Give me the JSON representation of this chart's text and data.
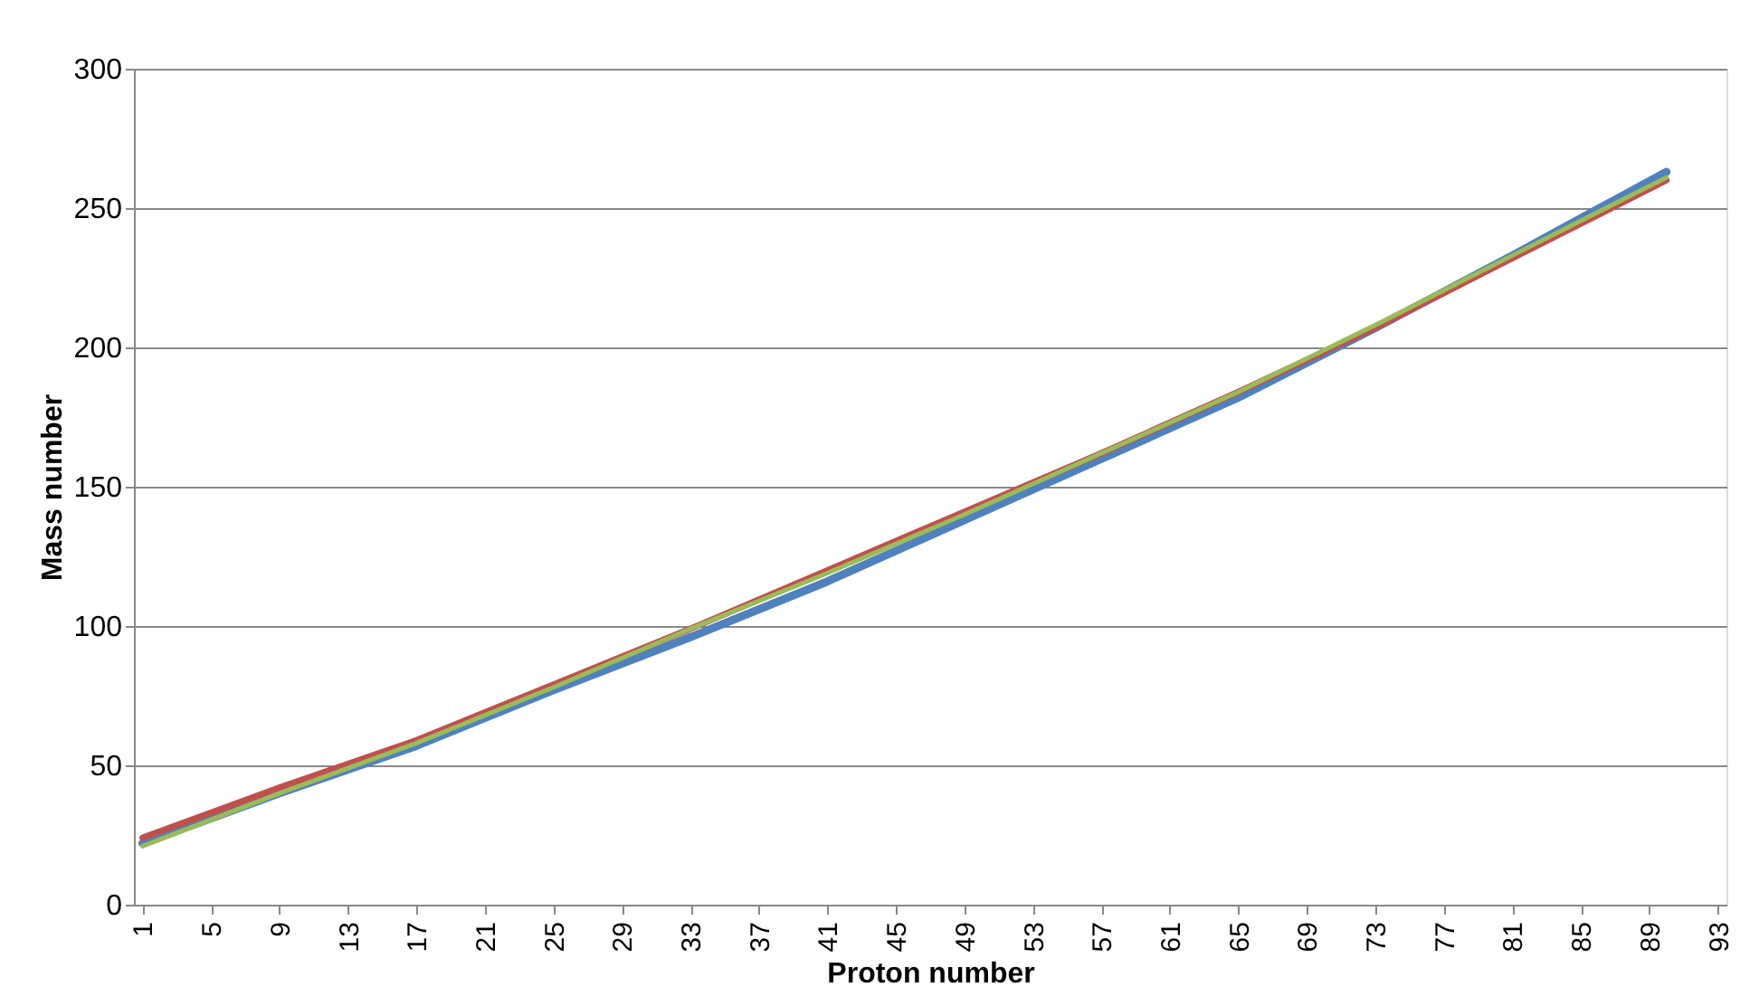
{
  "chart_data": {
    "type": "line",
    "xlabel": "Proton number",
    "ylabel": "Mass number",
    "xlim": [
      0.5,
      93.5
    ],
    "xticks": [
      1,
      5,
      9,
      13,
      17,
      21,
      25,
      29,
      33,
      37,
      41,
      45,
      49,
      53,
      57,
      61,
      65,
      69,
      73,
      77,
      81,
      85,
      89,
      93
    ],
    "ylim": [
      0,
      300
    ],
    "yticks": [
      0,
      50,
      100,
      150,
      200,
      250,
      300
    ],
    "grid": "y",
    "legend": false,
    "marker": "none",
    "line_style": "solid",
    "series": [
      {
        "color": "#4f81bd",
        "x": [
          1,
          9,
          17,
          25,
          33,
          41,
          49,
          57,
          65,
          73,
          81,
          90
        ],
        "values": [
          22,
          40,
          57,
          77,
          96,
          116,
          138,
          160,
          182,
          207,
          233,
          263
        ]
      },
      {
        "color": "#c0504d",
        "x": [
          1,
          9,
          17,
          25,
          33,
          41,
          49,
          57,
          65,
          73,
          81,
          90
        ],
        "values": [
          24,
          42,
          59,
          79,
          99,
          120,
          141,
          162,
          184,
          207,
          232,
          260
        ]
      },
      {
        "color": "#9bbb59",
        "x": [
          1,
          9,
          17,
          25,
          33,
          41,
          49,
          57,
          65,
          73,
          81,
          90
        ],
        "values": [
          21,
          40,
          58,
          78,
          99,
          119,
          140,
          162,
          184,
          208,
          233,
          261
        ]
      }
    ]
  }
}
